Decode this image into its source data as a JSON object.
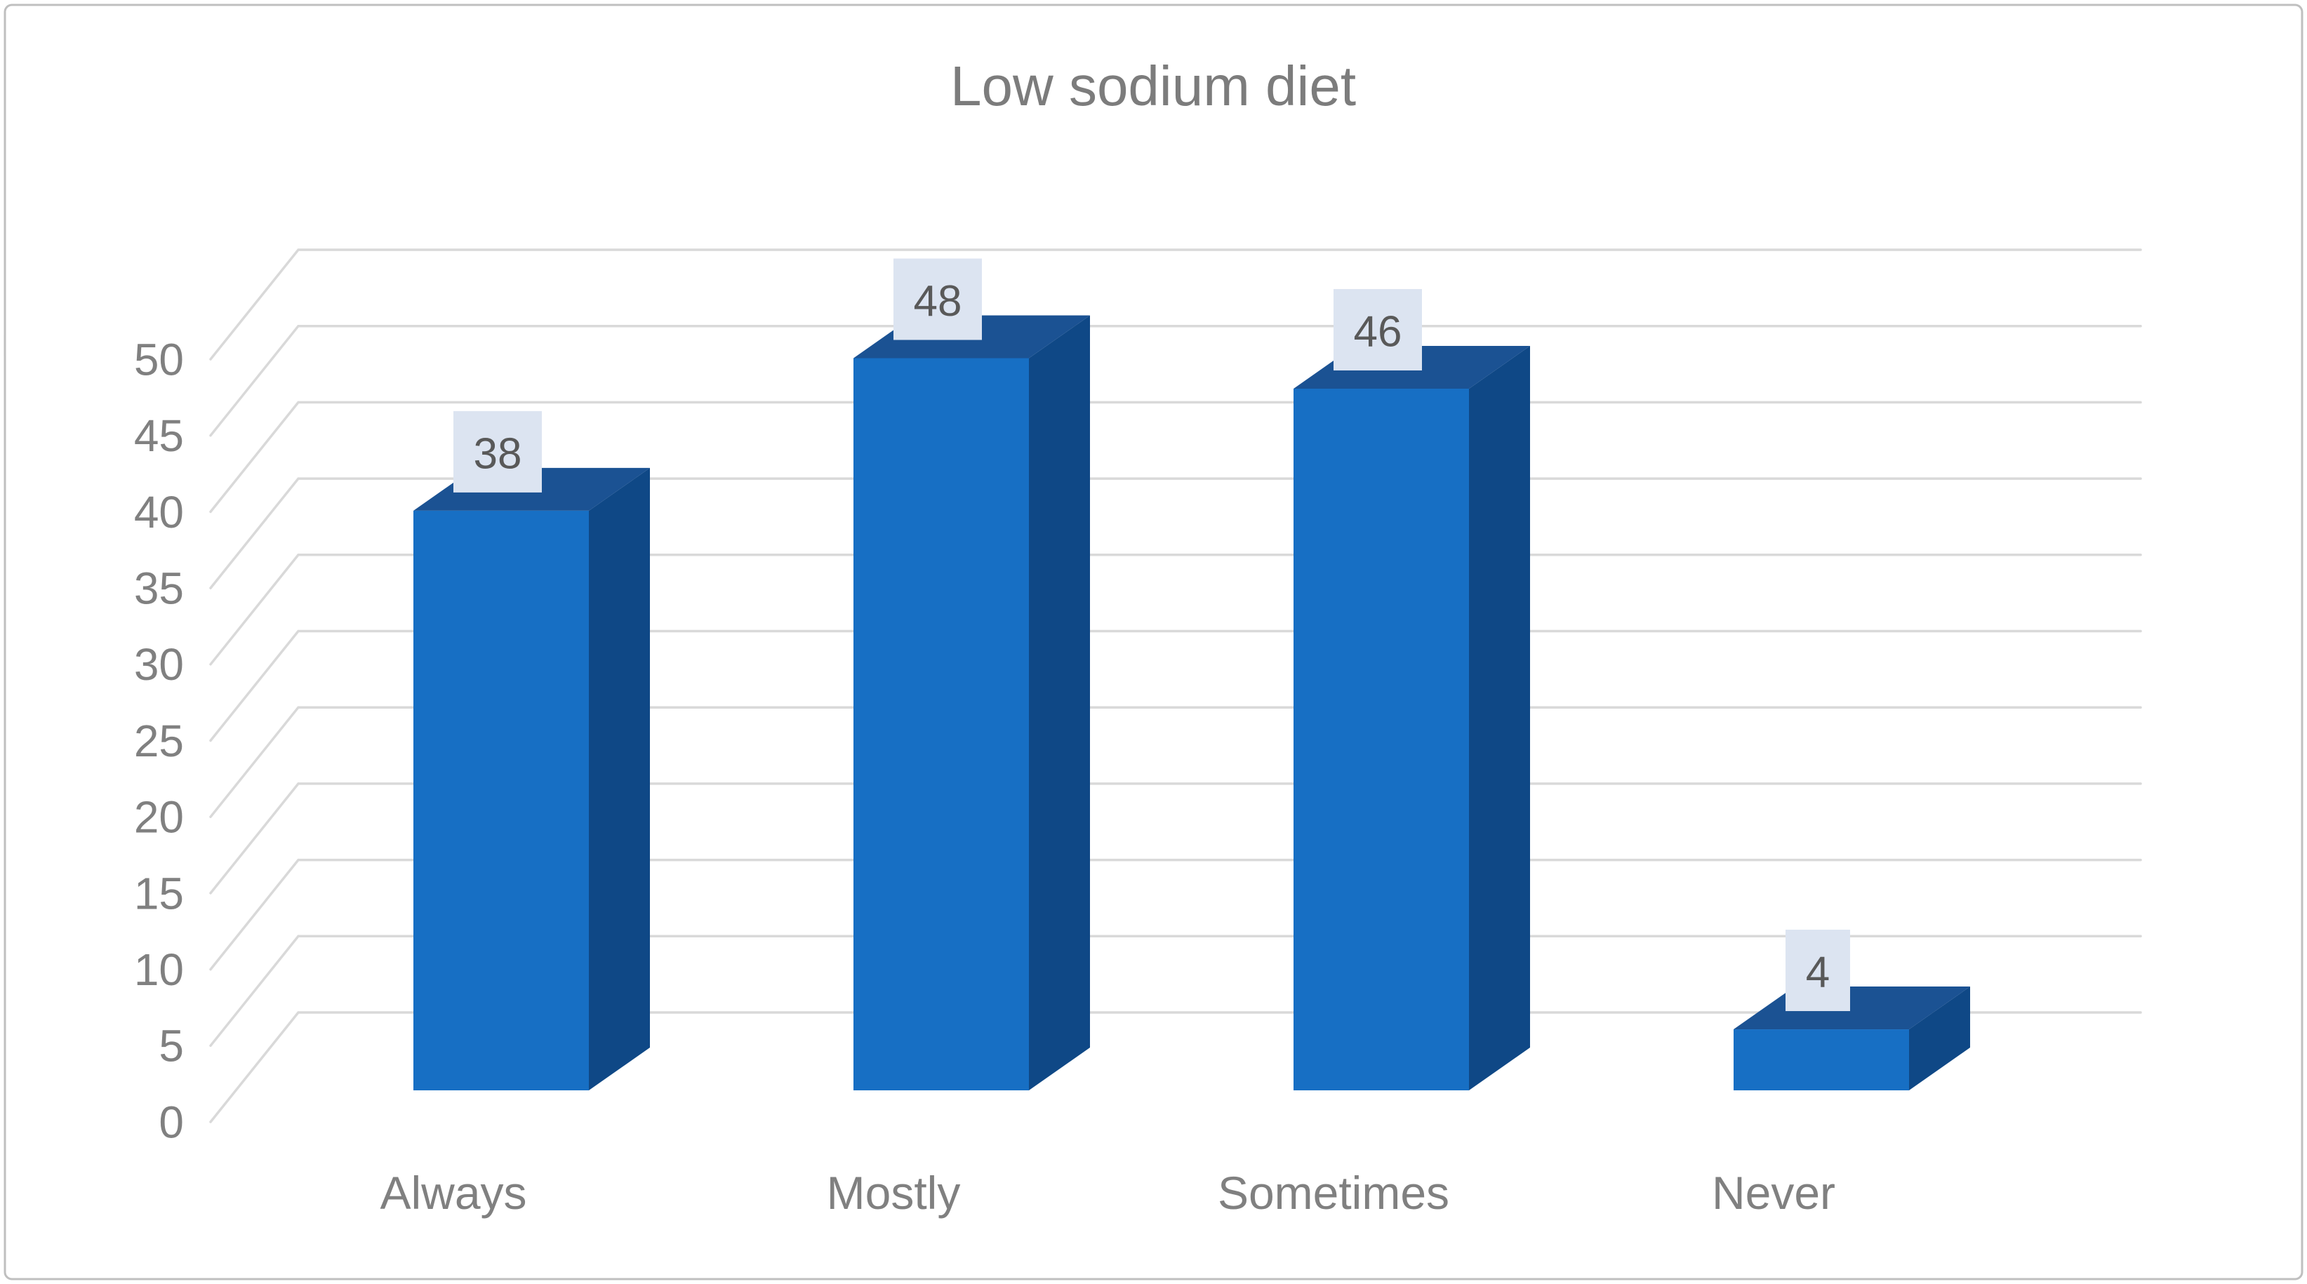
{
  "chart_data": {
    "type": "bar",
    "style": "excel-3d-column",
    "title": "Low sodium diet",
    "categories": [
      "Always",
      "Mostly",
      "Sometimes",
      "Never"
    ],
    "values": [
      38,
      48,
      46,
      4
    ],
    "data_labels": [
      "38",
      "48",
      "46",
      "4"
    ],
    "series": [
      {
        "name": "Low sodium diet",
        "values": [
          38,
          48,
          46,
          4
        ]
      }
    ],
    "xlabel": "",
    "ylabel": "",
    "ylim": [
      0,
      50
    ],
    "ytick_step": 5,
    "yticks": [
      0,
      5,
      10,
      15,
      20,
      25,
      30,
      35,
      40,
      45,
      50
    ],
    "grid": true,
    "legend_position": "none",
    "colors": {
      "bar_front": "#176FC4",
      "bar_top": "#1B5293",
      "bar_side": "#0F4886",
      "gridline": "#D9D9D9",
      "chart_border": "#BFBFBF",
      "title_text": "#7C7C7C",
      "axis_text": "#808080",
      "data_label_text": "#595959",
      "data_label_bg": "#DCE4F1",
      "background": "#FFFFFF"
    }
  }
}
